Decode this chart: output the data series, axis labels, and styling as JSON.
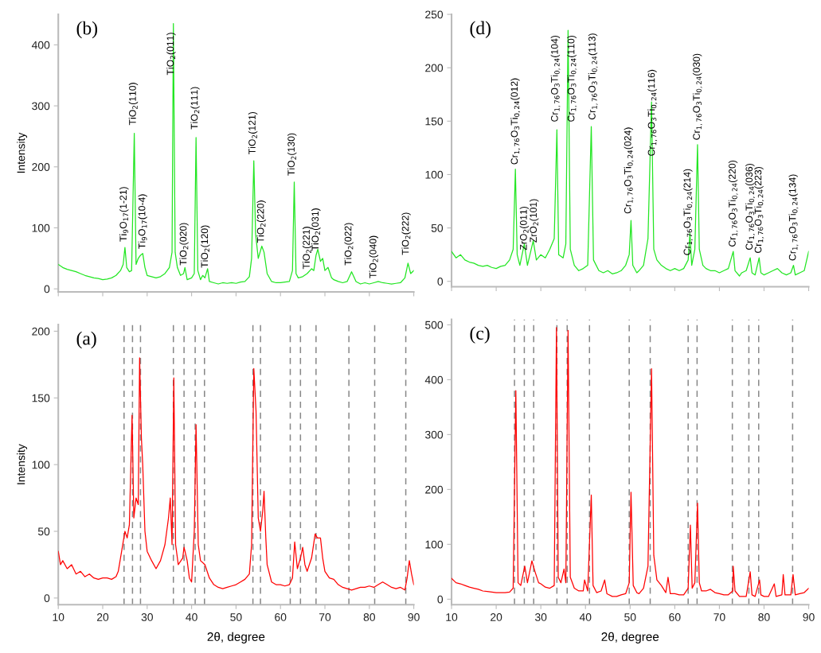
{
  "chart_data": [
    {
      "type": "line",
      "ylabel": "Intensity",
      "xlim": [
        10,
        90
      ],
      "xticks": [
        10,
        20,
        30,
        40,
        50,
        60,
        70,
        80,
        90
      ],
      "ylim": [
        -5,
        450
      ],
      "yticks": [
        0,
        100,
        200,
        300,
        400
      ],
      "tick_labels": "y",
      "series": [
        {
          "color": "#22e622",
          "x": [
            10,
            11,
            12,
            13,
            14,
            15,
            16,
            17,
            18,
            19,
            20,
            21,
            22,
            23,
            24,
            24.6,
            25,
            25.4,
            26,
            26.5,
            27.1,
            27.5,
            28,
            28.5,
            29,
            29.5,
            30,
            31,
            32,
            33,
            34,
            35,
            35.6,
            35.9,
            36.3,
            36.8,
            37.5,
            38.2,
            38.5,
            39,
            40,
            40.6,
            41,
            41.4,
            42,
            42.5,
            43,
            43.6,
            44,
            45,
            46,
            47,
            48,
            49,
            50,
            51,
            52,
            53,
            53.5,
            54,
            54.4,
            55,
            55.8,
            56.3,
            57,
            58,
            59,
            60,
            61,
            62,
            62.7,
            63.1,
            63.5,
            64,
            65,
            66,
            67,
            67.5,
            68,
            68.4,
            69,
            69.5,
            70,
            70.7,
            71.5,
            72,
            73,
            74,
            75,
            76,
            76.5,
            77,
            78,
            79,
            80,
            81,
            82,
            83,
            84,
            85,
            86,
            87,
            88,
            88.7,
            89.3,
            90
          ],
          "values": [
            40,
            35,
            32,
            30,
            28,
            25,
            22,
            20,
            18,
            17,
            15,
            16,
            18,
            22,
            30,
            40,
            68,
            35,
            28,
            30,
            255,
            40,
            50,
            55,
            58,
            35,
            22,
            20,
            18,
            20,
            25,
            35,
            60,
            435,
            60,
            35,
            22,
            25,
            35,
            15,
            18,
            25,
            248,
            30,
            15,
            22,
            18,
            33,
            12,
            10,
            8,
            10,
            9,
            10,
            9,
            11,
            12,
            20,
            50,
            210,
            90,
            50,
            70,
            60,
            25,
            12,
            10,
            10,
            11,
            12,
            30,
            175,
            25,
            18,
            20,
            25,
            33,
            30,
            55,
            65,
            45,
            50,
            30,
            35,
            18,
            15,
            12,
            10,
            12,
            28,
            20,
            12,
            8,
            10,
            8,
            10,
            12,
            10,
            9,
            8,
            9,
            10,
            18,
            42,
            25,
            30
          ]
        }
      ],
      "annotations": [
        "(b)",
        {
          "text": "Ti$_{9}$O$_{17}$(1-21)",
          "x": 24.8,
          "y": 70
        },
        {
          "text": "TiO$_{2}$(110)",
          "x": 26.9,
          "y": 261
        },
        {
          "text": "Ti$_{9}$O$_{17}$(10-4)",
          "x": 29,
          "y": 58
        },
        {
          "text": "TiO$_{2}$(011)",
          "x": 35.4,
          "y": 343
        },
        {
          "text": "TiO$_{2}$(020)",
          "x": 38.3,
          "y": 31
        },
        {
          "text": "TiO$_{2}$(111)",
          "x": 40.8,
          "y": 254
        },
        {
          "text": "TiO$_{2}$(120)",
          "x": 43.1,
          "y": 27
        },
        {
          "text": "TiO$_{2}$(121)",
          "x": 53.8,
          "y": 213
        },
        {
          "text": "TiO$_{2}$(220)",
          "x": 55.7,
          "y": 68
        },
        {
          "text": "TiO$_{2}$(130)",
          "x": 62.6,
          "y": 178
        },
        {
          "text": "TiO$_{2}$(221)",
          "x": 66,
          "y": 25
        },
        {
          "text": "TiO$_{2}$(031)",
          "x": 68,
          "y": 55
        },
        {
          "text": "TiO$_{2}$(022)",
          "x": 75.4,
          "y": 31
        },
        {
          "text": "TiO$_{2}$(040)",
          "x": 81,
          "y": 10
        },
        {
          "text": "TiO$_{2}$(222)",
          "x": 88.3,
          "y": 48
        }
      ]
    },
    {
      "type": "line",
      "xlim": [
        10,
        90
      ],
      "xticks": [
        10,
        20,
        30,
        40,
        50,
        60,
        70,
        80,
        90
      ],
      "ylim": [
        -5,
        250
      ],
      "yticks": [
        0,
        50,
        100,
        150,
        200,
        250
      ],
      "tick_labels": "y",
      "series": [
        {
          "color": "#22e622",
          "x": [
            10,
            11,
            12,
            13,
            14,
            15,
            16,
            17,
            18,
            19,
            20,
            21,
            22,
            23,
            23.8,
            24.3,
            24.7,
            25.3,
            26.3,
            27,
            28.3,
            29,
            30,
            31,
            32,
            33,
            33.6,
            34,
            35,
            35.6,
            36.1,
            36.6,
            37.5,
            38.5,
            39.5,
            40.5,
            41.3,
            41.8,
            43,
            44,
            45,
            46,
            47,
            48,
            49,
            49.8,
            50.2,
            50.6,
            51.5,
            52,
            53,
            54,
            54.8,
            55.3,
            56,
            57,
            58,
            59,
            60,
            61,
            62,
            63,
            63.4,
            63.8,
            64.5,
            65.1,
            65.5,
            66.3,
            67,
            68,
            69,
            70,
            71,
            72,
            73.1,
            73.5,
            74.5,
            75,
            76,
            76.9,
            77.3,
            78,
            78.9,
            79.3,
            80,
            81,
            82,
            83,
            84,
            85,
            86,
            86.6,
            87,
            88,
            89,
            90
          ],
          "values": [
            28,
            22,
            25,
            20,
            18,
            17,
            15,
            14,
            15,
            13,
            12,
            14,
            15,
            20,
            30,
            105,
            25,
            15,
            35,
            15,
            38,
            20,
            25,
            22,
            30,
            40,
            142,
            25,
            22,
            35,
            235,
            30,
            15,
            10,
            12,
            15,
            145,
            20,
            10,
            8,
            10,
            7,
            8,
            10,
            15,
            25,
            57,
            15,
            8,
            10,
            15,
            40,
            168,
            30,
            20,
            15,
            12,
            10,
            12,
            10,
            12,
            20,
            45,
            15,
            30,
            128,
            30,
            15,
            12,
            10,
            10,
            8,
            10,
            12,
            28,
            10,
            5,
            8,
            10,
            22,
            8,
            6,
            22,
            8,
            6,
            8,
            10,
            12,
            8,
            6,
            8,
            15,
            6,
            8,
            10,
            28
          ]
        }
      ],
      "annotations": [
        "(d)",
        {
          "text": "Cr$_{1,76}$O$_{3}$Ti$_{0,24}$(012)",
          "x": 24.3,
          "y": 105
        },
        {
          "text": "ZrO$_{2}$(011)",
          "x": 26.3,
          "y": 25
        },
        {
          "text": "ZrO$_{2}$(101)",
          "x": 28.5,
          "y": 32
        },
        {
          "text": "Cr$_{1,76}$O$_{3}$Ti$_{0,24}$(104)",
          "x": 33.3,
          "y": 145
        },
        {
          "text": "Cr$_{1,76}$O$_{3}$Ti$_{0,24}$(110)",
          "x": 37.0,
          "y": 145
        },
        {
          "text": "Cr$_{1,76}$O$_{3}$Ti$_{0,24}$(113)",
          "x": 41.7,
          "y": 147
        },
        {
          "text": "Cr$_{1,76}$O$_{3}$Ti$_{0,24}$(024)",
          "x": 49.7,
          "y": 59
        },
        {
          "text": "Cr$_{1,76}$O$_{3}$Ti$_{0,24}$(116)",
          "x": 55,
          "y": 113
        },
        {
          "text": "Cr$_{1,76}$O$_{3}$Ti$_{0,24}$(214)",
          "x": 63,
          "y": 20
        },
        {
          "text": "Cr$_{1,76}$O$_{3}$Ti$_{0,24}$(030)",
          "x": 65.1,
          "y": 128
        },
        {
          "text": "Cr$_{1,76}$O$_{3}$Ti$_{0,24}$(220)",
          "x": 73.1,
          "y": 28
        },
        {
          "text": "Cr$_{1,76}$O$_{3}$Ti$_{0,24}$(036)",
          "x": 76.9,
          "y": 25
        },
        {
          "text": "Cr$_{1,76}$O$_{3}$Ti$_{0,24}$(223)",
          "x": 78.9,
          "y": 22
        },
        {
          "text": "Cr$_{1,76}$O$_{3}$Ti$_{0,24}$(134)",
          "x": 86.6,
          "y": 15
        }
      ]
    },
    {
      "type": "line",
      "ylabel": "Intensity",
      "xlabel": "2θ, degree",
      "xlim": [
        10,
        90
      ],
      "xticks": [
        10,
        20,
        30,
        40,
        50,
        60,
        70,
        80,
        90
      ],
      "ylim": [
        -5,
        205
      ],
      "yticks": [
        0,
        50,
        100,
        150,
        200
      ],
      "series": [
        {
          "color": "#ff0000",
          "x": [
            10,
            10.5,
            11,
            12,
            13,
            14,
            15,
            16,
            17,
            18,
            19,
            20,
            21,
            22,
            23,
            23.5,
            24,
            24.5,
            25,
            25.5,
            26,
            26.6,
            27,
            27.5,
            28,
            28.3,
            28.7,
            29,
            29.5,
            30,
            31,
            32,
            33,
            34,
            34.8,
            35.2,
            35.6,
            36,
            36.4,
            37,
            38,
            38.3,
            39,
            39.5,
            40,
            40.6,
            41,
            41.5,
            42,
            43,
            44,
            45,
            46,
            47,
            48,
            49,
            50,
            51,
            52,
            53,
            53.5,
            54,
            54.5,
            55,
            55.5,
            56,
            56.3,
            56.7,
            57,
            58,
            59,
            60,
            61,
            62,
            62.7,
            63.2,
            63.8,
            64.5,
            65,
            65.5,
            66,
            67,
            67.8,
            68.3,
            69,
            69.5,
            70,
            71,
            72,
            73,
            74,
            75,
            76,
            77,
            78,
            79,
            80,
            81,
            82,
            83,
            84,
            85,
            86,
            87,
            88,
            88.5,
            89,
            89.5,
            90
          ],
          "values": [
            35,
            25,
            28,
            22,
            25,
            18,
            20,
            16,
            18,
            15,
            14,
            15,
            15,
            14,
            16,
            20,
            30,
            40,
            50,
            45,
            55,
            137,
            60,
            75,
            70,
            180,
            120,
            100,
            50,
            35,
            28,
            22,
            28,
            40,
            60,
            75,
            40,
            165,
            40,
            25,
            30,
            38,
            28,
            15,
            12,
            50,
            130,
            40,
            28,
            25,
            15,
            10,
            8,
            7,
            8,
            9,
            10,
            12,
            14,
            18,
            40,
            172,
            140,
            60,
            50,
            65,
            80,
            45,
            25,
            12,
            10,
            10,
            9,
            10,
            15,
            42,
            22,
            30,
            38,
            25,
            20,
            30,
            48,
            45,
            45,
            30,
            20,
            15,
            14,
            10,
            8,
            7,
            6,
            7,
            8,
            8,
            9,
            8,
            10,
            12,
            10,
            8,
            7,
            8,
            6,
            15,
            28,
            18,
            10
          ]
        }
      ],
      "ref_lines": [
        {
          "axis": "x",
          "value": 24.8,
          "color": "#888888",
          "line_style": "dashed"
        },
        {
          "axis": "x",
          "value": 26.7,
          "color": "#888888",
          "line_style": "dashed"
        },
        {
          "axis": "x",
          "value": 28.5,
          "color": "#888888",
          "line_style": "dashed"
        },
        {
          "axis": "x",
          "value": 35.9,
          "color": "#888888",
          "line_style": "dashed"
        },
        {
          "axis": "x",
          "value": 38.3,
          "color": "#888888",
          "line_style": "dashed"
        },
        {
          "axis": "x",
          "value": 40.8,
          "color": "#888888",
          "line_style": "dashed"
        },
        {
          "axis": "x",
          "value": 42.9,
          "color": "#888888",
          "line_style": "dashed"
        },
        {
          "axis": "x",
          "value": 53.8,
          "color": "#888888",
          "line_style": "dashed"
        },
        {
          "axis": "x",
          "value": 55.5,
          "color": "#888888",
          "line_style": "dashed"
        },
        {
          "axis": "x",
          "value": 62.2,
          "color": "#888888",
          "line_style": "dashed"
        },
        {
          "axis": "x",
          "value": 64.5,
          "color": "#888888",
          "line_style": "dashed"
        },
        {
          "axis": "x",
          "value": 68.0,
          "color": "#888888",
          "line_style": "dashed"
        },
        {
          "axis": "x",
          "value": 75.4,
          "color": "#888888",
          "line_style": "dashed"
        },
        {
          "axis": "x",
          "value": 81.2,
          "color": "#888888",
          "line_style": "dashed"
        },
        {
          "axis": "x",
          "value": 88.2,
          "color": "#888888",
          "line_style": "dashed"
        }
      ],
      "annotations": [
        "(a)"
      ]
    },
    {
      "type": "line",
      "xlabel": "2θ, degree",
      "xlim": [
        10,
        90
      ],
      "xticks": [
        10,
        20,
        30,
        40,
        50,
        60,
        70,
        80,
        90
      ],
      "ylim": [
        -10,
        510
      ],
      "yticks": [
        0,
        100,
        200,
        300,
        400,
        500
      ],
      "series": [
        {
          "color": "#ff0000",
          "x": [
            10,
            11,
            12,
            13,
            14,
            15,
            16,
            17,
            18,
            19,
            20,
            21,
            22,
            23,
            23.8,
            24.4,
            24.9,
            25.5,
            26.4,
            27,
            28,
            28.7,
            29.5,
            30,
            31,
            32,
            33,
            33.5,
            33.9,
            34.5,
            35.2,
            35.6,
            36.1,
            36.6,
            37.5,
            38.5,
            39.5,
            39.8,
            40.5,
            41.3,
            41.7,
            42.5,
            43.5,
            44.3,
            44.8,
            46,
            47,
            48,
            49,
            49.8,
            50.2,
            50.7,
            51.5,
            52,
            53,
            54,
            54.8,
            55.3,
            56,
            57,
            58,
            58.5,
            59,
            60,
            61,
            62,
            63,
            63.5,
            63.9,
            64.5,
            65.1,
            65.5,
            66,
            67,
            68,
            69,
            70,
            71,
            72,
            73,
            73.1,
            73.5,
            74.5,
            76,
            76.9,
            77.3,
            78,
            79,
            79.3,
            80,
            81,
            82.3,
            82.7,
            84,
            84.3,
            84.7,
            86,
            86.5,
            87,
            88,
            89,
            90
          ],
          "values": [
            38,
            30,
            28,
            25,
            22,
            20,
            18,
            15,
            14,
            13,
            12,
            12,
            12,
            13,
            20,
            380,
            30,
            25,
            60,
            30,
            70,
            50,
            30,
            28,
            22,
            20,
            25,
            495,
            40,
            30,
            55,
            30,
            490,
            40,
            20,
            15,
            15,
            35,
            15,
            190,
            25,
            12,
            15,
            35,
            10,
            5,
            5,
            8,
            10,
            30,
            195,
            25,
            12,
            10,
            20,
            60,
            420,
            80,
            35,
            25,
            12,
            40,
            10,
            10,
            8,
            8,
            20,
            135,
            20,
            30,
            175,
            30,
            15,
            15,
            18,
            12,
            10,
            8,
            8,
            15,
            60,
            15,
            5,
            5,
            50,
            8,
            5,
            35,
            8,
            5,
            5,
            28,
            5,
            8,
            45,
            8,
            8,
            45,
            8,
            10,
            12,
            20
          ]
        }
      ],
      "ref_lines": [
        {
          "axis": "x",
          "value": 24.1,
          "color": "#888888",
          "line_style": "dashed"
        },
        {
          "axis": "x",
          "value": 26.3,
          "color": "#888888",
          "line_style": "dashed"
        },
        {
          "axis": "x",
          "value": 28.4,
          "color": "#888888",
          "line_style": "dashed"
        },
        {
          "axis": "x",
          "value": 33.6,
          "color": "#888888",
          "line_style": "dashed"
        },
        {
          "axis": "x",
          "value": 35.9,
          "color": "#888888",
          "line_style": "dashed"
        },
        {
          "axis": "x",
          "value": 40.9,
          "color": "#888888",
          "line_style": "dashed"
        },
        {
          "axis": "x",
          "value": 49.8,
          "color": "#888888",
          "line_style": "dashed"
        },
        {
          "axis": "x",
          "value": 54.5,
          "color": "#888888",
          "line_style": "dashed"
        },
        {
          "axis": "x",
          "value": 63.0,
          "color": "#888888",
          "line_style": "dashed"
        },
        {
          "axis": "x",
          "value": 65.0,
          "color": "#888888",
          "line_style": "dashed"
        },
        {
          "axis": "x",
          "value": 72.9,
          "color": "#888888",
          "line_style": "dashed"
        },
        {
          "axis": "x",
          "value": 76.6,
          "color": "#888888",
          "line_style": "dashed"
        },
        {
          "axis": "x",
          "value": 78.8,
          "color": "#888888",
          "line_style": "dashed"
        },
        {
          "axis": "x",
          "value": 86.4,
          "color": "#888888",
          "line_style": "dashed"
        }
      ],
      "annotations": [
        "(c)"
      ]
    }
  ]
}
